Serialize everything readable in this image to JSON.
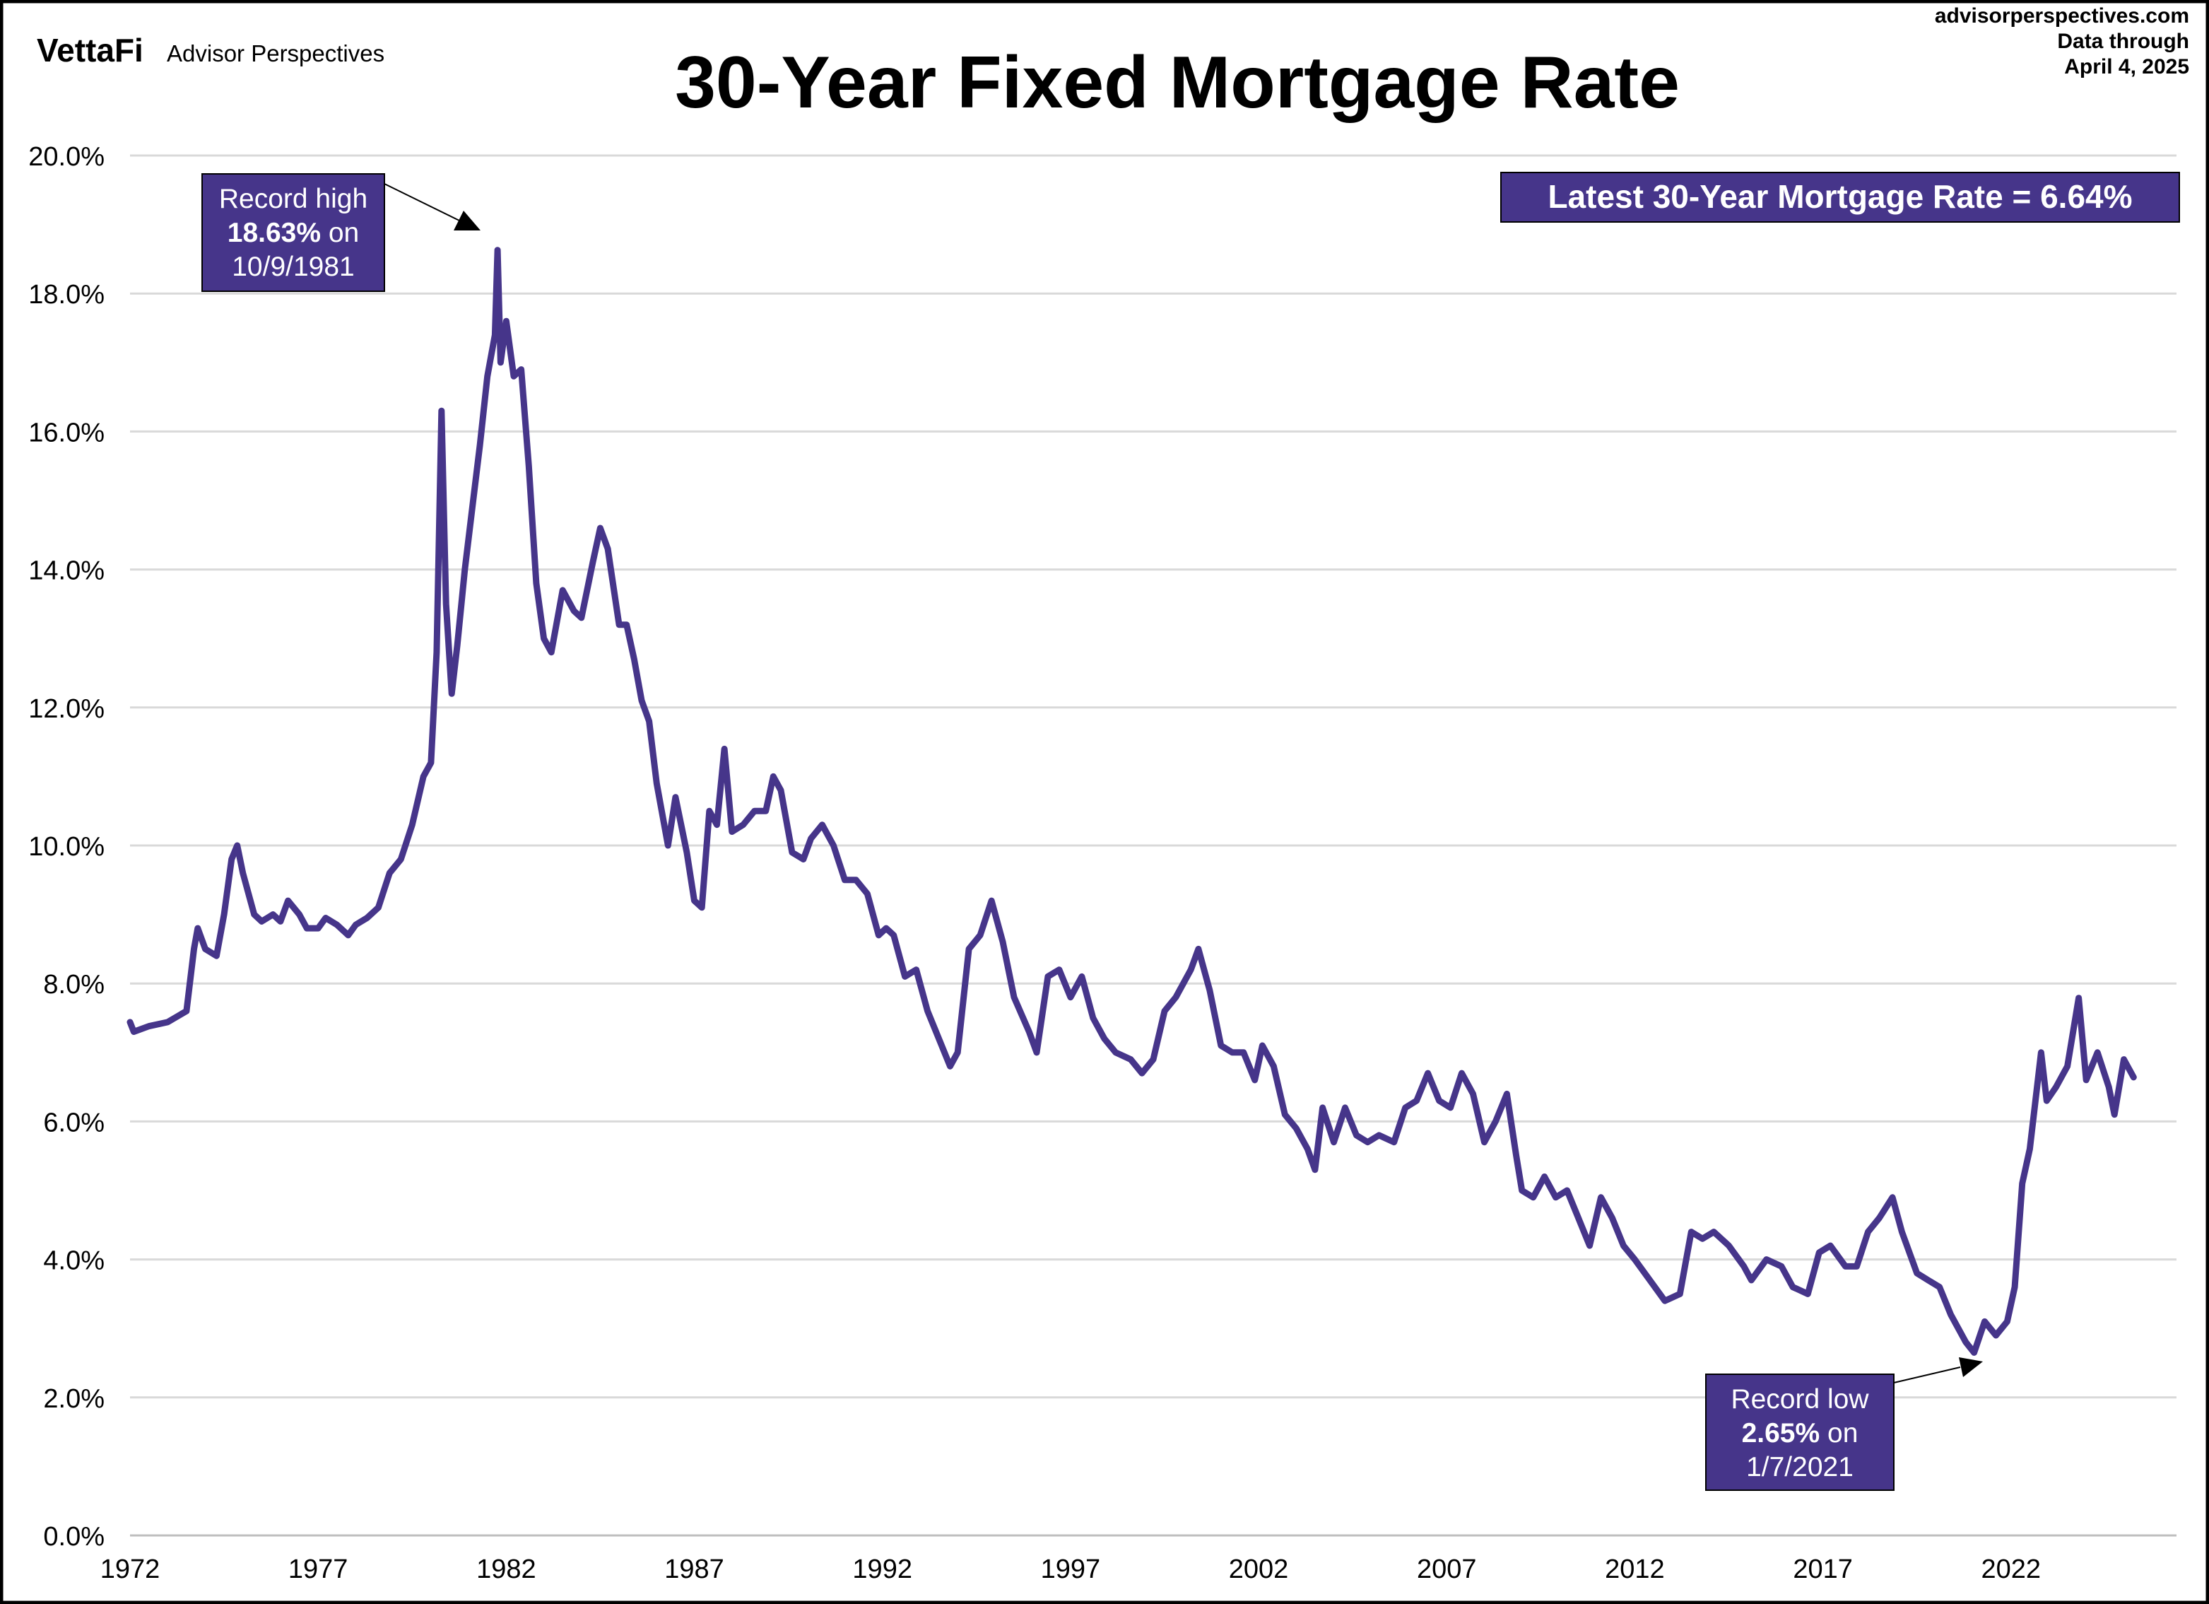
{
  "header": {
    "logo_brand": "VettaFi",
    "logo_sub": "Advisor Perspectives",
    "title": "30-Year Fixed Mortgage Rate",
    "source": "advisorperspectives.com",
    "data_through_label": "Data through",
    "data_through_date": "April 4, 2025"
  },
  "colors": {
    "series": "#46358A",
    "box": "#46358A",
    "grid": "#d9d9d9",
    "text": "#000000"
  },
  "annotations": {
    "latest": "Latest 30-Year Mortgage Rate = 6.64%",
    "high": {
      "line1": "Record high",
      "value": "18.63%",
      "on": " on",
      "date": "10/9/1981"
    },
    "low": {
      "line1": "Record low",
      "value": "2.65%",
      "on": " on",
      "date": "1/7/2021"
    }
  },
  "chart_data": {
    "type": "line",
    "title": "30-Year Fixed Mortgage Rate",
    "xlabel": "",
    "ylabel": "",
    "xlim": [
      1972,
      2026.4
    ],
    "ylim": [
      0,
      20
    ],
    "grid": true,
    "x_ticks": [
      "1972",
      "1977",
      "1982",
      "1987",
      "1992",
      "1997",
      "2002",
      "2007",
      "2012",
      "2017",
      "2022"
    ],
    "y_ticks": [
      "0.0%",
      "2.0%",
      "4.0%",
      "6.0%",
      "8.0%",
      "10.0%",
      "12.0%",
      "14.0%",
      "16.0%",
      "18.0%",
      "20.0%"
    ],
    "series": [
      {
        "x": [
          1972.0,
          1972.1,
          1972.5,
          1973.0,
          1973.5,
          1973.7,
          1973.8,
          1974.0,
          1974.3,
          1974.5,
          1974.7,
          1974.85,
          1975.0,
          1975.3,
          1975.5,
          1975.8,
          1976.0,
          1976.2,
          1976.5,
          1976.7,
          1977.0,
          1977.2,
          1977.5,
          1977.8,
          1978.0,
          1978.3,
          1978.6,
          1978.9,
          1979.2,
          1979.5,
          1979.8,
          1980.0,
          1980.15,
          1980.28,
          1980.4,
          1980.55,
          1980.7,
          1980.9,
          1981.1,
          1981.3,
          1981.5,
          1981.7,
          1981.77,
          1981.85,
          1982.0,
          1982.2,
          1982.4,
          1982.6,
          1982.8,
          1983.0,
          1983.2,
          1983.5,
          1983.8,
          1984.0,
          1984.3,
          1984.5,
          1984.7,
          1985.0,
          1985.2,
          1985.4,
          1985.6,
          1985.8,
          1986.0,
          1986.3,
          1986.5,
          1986.8,
          1987.0,
          1987.2,
          1987.4,
          1987.6,
          1987.8,
          1988.0,
          1988.3,
          1988.6,
          1988.9,
          1989.1,
          1989.3,
          1989.6,
          1989.9,
          1990.1,
          1990.4,
          1990.7,
          1991.0,
          1991.3,
          1991.6,
          1991.9,
          1992.1,
          1992.3,
          1992.6,
          1992.9,
          1993.2,
          1993.5,
          1993.8,
          1994.0,
          1994.3,
          1994.6,
          1994.9,
          1995.2,
          1995.5,
          1995.9,
          1996.1,
          1996.4,
          1996.7,
          1997.0,
          1997.3,
          1997.6,
          1997.9,
          1998.2,
          1998.6,
          1998.9,
          1999.2,
          1999.5,
          1999.8,
          2000.2,
          2000.4,
          2000.7,
          2001.0,
          2001.3,
          2001.6,
          2001.9,
          2002.1,
          2002.4,
          2002.7,
          2003.0,
          2003.3,
          2003.5,
          2003.7,
          2004.0,
          2004.3,
          2004.6,
          2004.9,
          2005.2,
          2005.6,
          2005.9,
          2006.2,
          2006.5,
          2006.8,
          2007.1,
          2007.4,
          2007.7,
          2008.0,
          2008.3,
          2008.6,
          2008.85,
          2009.0,
          2009.3,
          2009.6,
          2009.9,
          2010.2,
          2010.5,
          2010.8,
          2011.1,
          2011.4,
          2011.7,
          2012.0,
          2012.4,
          2012.8,
          2013.2,
          2013.5,
          2013.8,
          2014.1,
          2014.5,
          2014.9,
          2015.1,
          2015.5,
          2015.9,
          2016.2,
          2016.6,
          2016.9,
          2017.2,
          2017.6,
          2017.9,
          2018.2,
          2018.5,
          2018.85,
          2019.1,
          2019.5,
          2019.8,
          2020.1,
          2020.4,
          2020.8,
          2021.02,
          2021.3,
          2021.6,
          2021.9,
          2022.1,
          2022.3,
          2022.5,
          2022.8,
          2022.95,
          2023.2,
          2023.5,
          2023.8,
          2024.0,
          2024.3,
          2024.6,
          2024.75,
          2025.0,
          2025.26
        ],
        "y": [
          7.44,
          7.3,
          7.38,
          7.44,
          7.6,
          8.5,
          8.8,
          8.5,
          8.4,
          9.0,
          9.8,
          10.0,
          9.6,
          9.0,
          8.9,
          9.0,
          8.9,
          9.2,
          9.0,
          8.8,
          8.8,
          8.95,
          8.85,
          8.7,
          8.85,
          8.95,
          9.1,
          9.6,
          9.8,
          10.3,
          11.0,
          11.2,
          12.8,
          16.3,
          13.5,
          12.2,
          12.9,
          14.0,
          14.9,
          15.8,
          16.8,
          17.4,
          18.63,
          17.0,
          17.6,
          16.8,
          16.9,
          15.5,
          13.8,
          13.0,
          12.8,
          13.7,
          13.4,
          13.3,
          14.1,
          14.6,
          14.3,
          13.2,
          13.2,
          12.7,
          12.1,
          11.8,
          10.9,
          10.0,
          10.7,
          9.9,
          9.2,
          9.1,
          10.5,
          10.3,
          11.4,
          10.2,
          10.3,
          10.5,
          10.5,
          11.0,
          10.8,
          9.9,
          9.8,
          10.1,
          10.3,
          10.0,
          9.5,
          9.5,
          9.3,
          8.7,
          8.8,
          8.7,
          8.1,
          8.2,
          7.6,
          7.2,
          6.8,
          7.0,
          8.5,
          8.7,
          9.2,
          8.6,
          7.8,
          7.3,
          7.0,
          8.1,
          8.2,
          7.8,
          8.1,
          7.5,
          7.2,
          7.0,
          6.9,
          6.7,
          6.9,
          7.6,
          7.8,
          8.2,
          8.5,
          7.9,
          7.1,
          7.0,
          7.0,
          6.6,
          7.1,
          6.8,
          6.1,
          5.9,
          5.6,
          5.3,
          6.2,
          5.7,
          6.2,
          5.8,
          5.7,
          5.8,
          5.7,
          6.2,
          6.3,
          6.7,
          6.3,
          6.2,
          6.7,
          6.4,
          5.7,
          6.0,
          6.4,
          5.5,
          5.0,
          4.9,
          5.2,
          4.9,
          5.0,
          4.6,
          4.2,
          4.9,
          4.6,
          4.2,
          4.0,
          3.7,
          3.4,
          3.5,
          4.4,
          4.3,
          4.4,
          4.2,
          3.9,
          3.7,
          4.0,
          3.9,
          3.6,
          3.5,
          4.1,
          4.2,
          3.9,
          3.9,
          4.4,
          4.6,
          4.9,
          4.4,
          3.8,
          3.7,
          3.6,
          3.2,
          2.8,
          2.65,
          3.1,
          2.9,
          3.1,
          3.6,
          5.1,
          5.6,
          7.0,
          6.3,
          6.5,
          6.8,
          7.79,
          6.6,
          7.0,
          6.5,
          6.1,
          6.9,
          6.64
        ]
      }
    ]
  }
}
